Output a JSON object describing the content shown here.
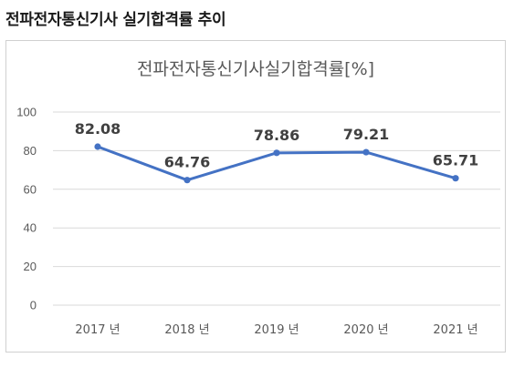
{
  "page": {
    "heading": "전파전자통신기사 실기합격률 추이"
  },
  "colors": {
    "line": "#4472C4",
    "grid": "#d9d9d9"
  },
  "chart_data": {
    "type": "line",
    "title": "전파전자통신기사실기합격률[%]",
    "categories": [
      "2017 년",
      "2018 년",
      "2019 년",
      "2020 년",
      "2021 년"
    ],
    "series": [
      {
        "values": [
          82.08,
          64.76,
          78.86,
          79.21,
          65.71
        ],
        "labels": [
          "82.08",
          "64.76",
          "78.86",
          "79.21",
          "65.71"
        ]
      }
    ],
    "ylim": [
      0,
      100
    ],
    "yticks": [
      "0",
      "20",
      "40",
      "60",
      "80",
      "100"
    ],
    "grid": true,
    "legend": "none"
  }
}
